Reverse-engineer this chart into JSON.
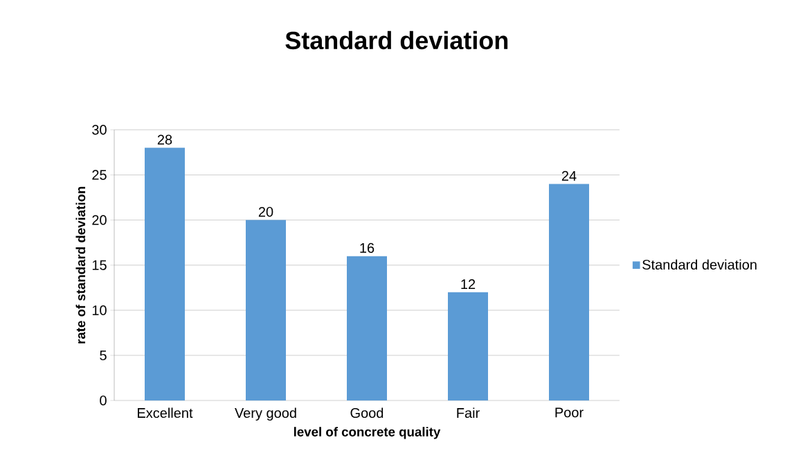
{
  "chart_data": {
    "type": "bar",
    "title": "Standard deviation",
    "xlabel": "level of concrete quality",
    "ylabel": "rate of standard deviation",
    "categories": [
      "Excellent",
      "Very good",
      "Good",
      "Fair",
      "Poor"
    ],
    "series": [
      {
        "name": "Standard deviation",
        "color": "#5b9bd5",
        "values": [
          28,
          20,
          16,
          12,
          24
        ]
      }
    ],
    "ylim": [
      0,
      30
    ],
    "yticks": [
      0,
      5,
      10,
      15,
      20,
      25,
      30
    ],
    "grid": "y",
    "legend": "right",
    "data_labels": true
  }
}
